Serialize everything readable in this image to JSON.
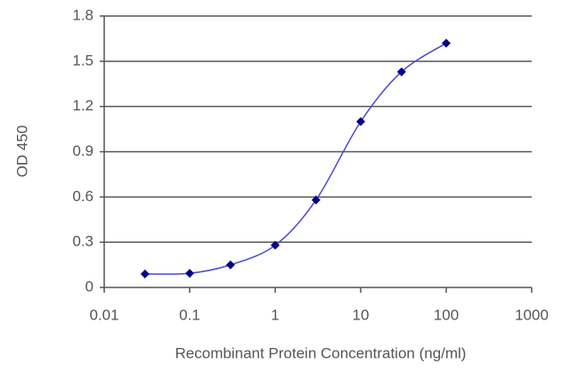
{
  "chart_data": {
    "type": "scatter",
    "x_label": "Recombinant Protein Concentration (ng/ml)",
    "y_label": "OD 450",
    "x": [
      0.03,
      0.1,
      0.3,
      1,
      3,
      10,
      30,
      100
    ],
    "values": [
      0.089,
      0.094,
      0.15,
      0.28,
      0.58,
      1.1,
      1.43,
      1.62
    ],
    "color": "#00008b",
    "line_color": "#4848d0",
    "curve": "smooth",
    "xscale": "log",
    "xlim": [
      0.01,
      1000
    ],
    "xticks": [
      0.01,
      0.1,
      1,
      10,
      100,
      1000
    ],
    "ylim": [
      0,
      1.8
    ],
    "yticks": [
      0,
      0.3,
      0.6,
      0.9,
      1.2,
      1.5,
      1.8
    ],
    "grid": true
  }
}
